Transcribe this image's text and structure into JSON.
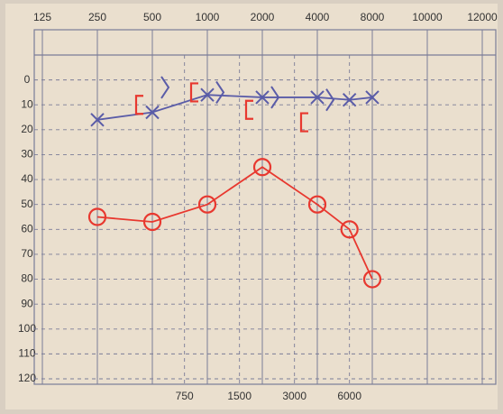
{
  "chart_data": {
    "type": "audiogram",
    "xticks": [
      125,
      250,
      500,
      1000,
      2000,
      4000,
      8000,
      10000,
      12000
    ],
    "xticks_minor": [
      750,
      1500,
      3000,
      6000
    ],
    "ylim": [
      -10,
      120
    ],
    "y_inverted": true,
    "yticks": [
      0,
      10,
      20,
      30,
      40,
      50,
      60,
      70,
      80,
      90,
      100,
      110,
      120
    ],
    "grid": true,
    "series": [
      {
        "color": "#e8382f",
        "marker": "circle",
        "connect": true,
        "x": [
          250,
          500,
          1000,
          2000,
          4000,
          6000,
          8000
        ],
        "values": [
          55,
          57,
          50,
          35,
          50,
          60,
          80
        ]
      },
      {
        "color": "#5a5ca8",
        "marker": "cross",
        "connect": true,
        "x": [
          250,
          500,
          1000,
          2000,
          4000,
          6000,
          8000
        ],
        "values": [
          16,
          13,
          6,
          7,
          7,
          8,
          7
        ]
      },
      {
        "color": "#e8382f",
        "marker": "bracket",
        "connect": false,
        "x": [
          500,
          1000,
          2000,
          4000
        ],
        "values": [
          10,
          5,
          12,
          17
        ]
      },
      {
        "color": "#5a5ca8",
        "marker": "chevron",
        "connect": false,
        "x": [
          500,
          1000,
          2000,
          4000
        ],
        "values": [
          3,
          5,
          7,
          8
        ]
      }
    ]
  }
}
